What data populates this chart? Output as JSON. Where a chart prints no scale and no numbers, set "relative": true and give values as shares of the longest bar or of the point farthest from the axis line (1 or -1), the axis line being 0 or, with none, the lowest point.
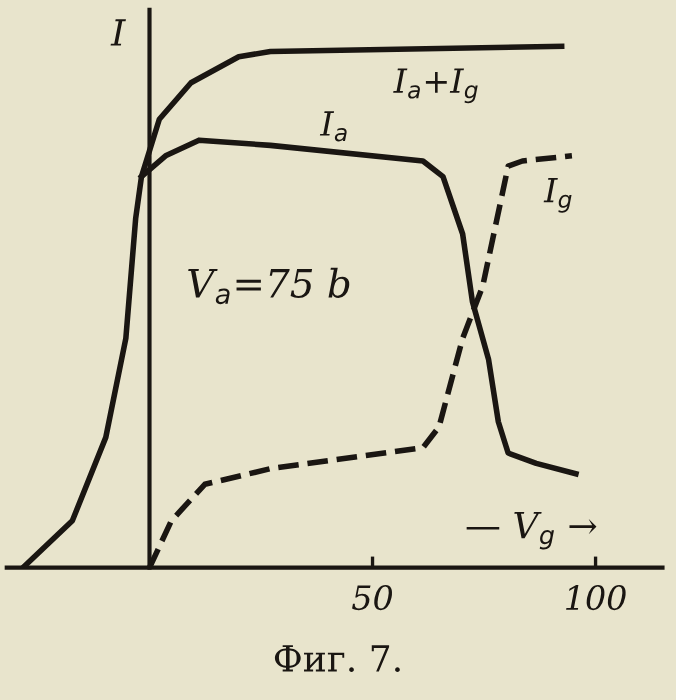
{
  "chart_data": {
    "type": "line",
    "relative": true,
    "ylabel": "I",
    "xlabel": "— V$_{g}$ →",
    "xlim": [
      -32,
      115
    ],
    "xticks": [
      50,
      100
    ],
    "grid": false,
    "legend": false,
    "marker": "none",
    "series": [
      {
        "name": "I$_{a}$+I$_{g}$",
        "color": "#1a1612",
        "line_style": "solid",
        "x": [
          -28.4,
          -17.3,
          -9.8,
          -5.3,
          -3.1,
          -1.8,
          2.2,
          9.3,
          20,
          27.1,
          92.4
        ],
        "values": [
          0,
          0.09,
          0.25,
          0.44,
          0.67,
          0.75,
          0.86,
          0.93,
          0.98,
          0.99,
          1
        ]
      },
      {
        "name": "I$_{a}$",
        "color": "#1a1612",
        "line_style": "solid",
        "x": [
          -1.8,
          3.6,
          11.1,
          27.1,
          61.3,
          65.8,
          70.2,
          72.4,
          76,
          78.2,
          80.4,
          86.7,
          95.6
        ],
        "values": [
          0.75,
          0.79,
          0.82,
          0.81,
          0.78,
          0.75,
          0.64,
          0.51,
          0.4,
          0.28,
          0.22,
          0.2,
          0.18
        ]
      },
      {
        "name": "I$_{g}$",
        "color": "#1a1612",
        "line_style": "dashed",
        "x": [
          0,
          4.9,
          12.4,
          27.1,
          61.3,
          64.9,
          70.2,
          74.7,
          80.4,
          83.6,
          94.7
        ],
        "values": [
          0,
          0.09,
          0.16,
          0.19,
          0.23,
          0.27,
          0.44,
          0.54,
          0.77,
          0.78,
          0.79
        ]
      }
    ],
    "annotations": [
      "V$_{a}$=75 b",
      "Фиг. 7."
    ]
  }
}
